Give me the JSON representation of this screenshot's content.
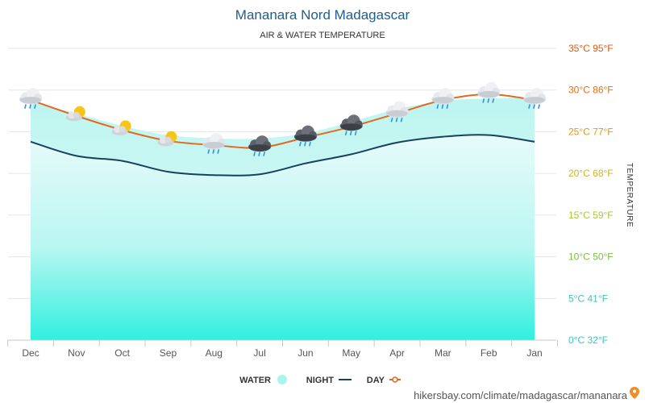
{
  "chart_data": {
    "type": "area",
    "title": "Mananara Nord Madagascar",
    "subtitle": "AIR & WATER TEMPERATURE",
    "ylabel": "TEMPERATURE",
    "categories": [
      "Jan",
      "Feb",
      "Mar",
      "Apr",
      "May",
      "Jun",
      "Jul",
      "Aug",
      "Sep",
      "Oct",
      "Nov",
      "Dec"
    ],
    "ylim": [
      0,
      35
    ],
    "yticks": [
      "0°C 32°F",
      "5°C 41°F",
      "10°C 50°F",
      "15°C 59°F",
      "20°C 68°F",
      "25°C 77°F",
      "30°C 86°F",
      "35°C 95°F"
    ],
    "ytick_colors": [
      "#37c9c0",
      "#45c4b0",
      "#7bc043",
      "#a6c93a",
      "#c9b52c",
      "#d99a1f",
      "#e2701b",
      "#e05a14"
    ],
    "series": [
      {
        "name": "DAY",
        "color": "#e2691e",
        "values": [
          28.8,
          29.5,
          28.8,
          27.2,
          25.6,
          24.3,
          23.1,
          23.4,
          23.9,
          25.2,
          26.9,
          28.8
        ]
      },
      {
        "name": "NIGHT",
        "color": "#18425a",
        "values": [
          23.8,
          24.6,
          24.4,
          23.7,
          22.3,
          21.2,
          19.9,
          19.8,
          20.2,
          21.5,
          22.1,
          23.8
        ]
      },
      {
        "name": "WATER",
        "color": "#7ff0e4",
        "values": [
          29.1,
          29.0,
          28.7,
          27.7,
          26.2,
          24.8,
          24.2,
          24.2,
          24.6,
          25.7,
          27.2,
          28.6
        ]
      }
    ],
    "weather_icons": [
      "rain-cloud",
      "rain-cloud",
      "rain-cloud",
      "rain-cloud",
      "storm-cloud",
      "storm-cloud",
      "storm-cloud",
      "rain-cloud",
      "sun-cloud",
      "sun-cloud",
      "sun-cloud",
      "rain-cloud"
    ],
    "grid": true,
    "legend_position": "bottom-center",
    "layout_note": "mirrored: Jan at right, Dec at left; y-axis on right"
  },
  "legend": {
    "day": "DAY",
    "night": "NIGHT",
    "water": "WATER"
  },
  "source": {
    "text": "hikersbay.com/climate/madagascar/mananara",
    "color": "#6a6a6a"
  }
}
